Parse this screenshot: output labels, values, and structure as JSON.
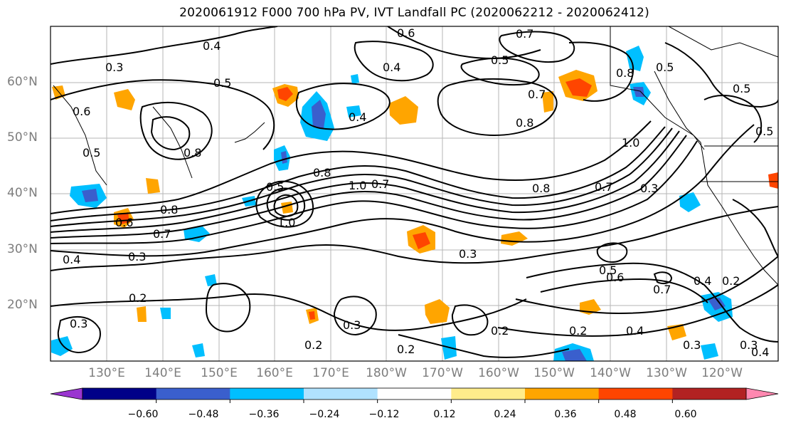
{
  "title": "2020061912 F000 700 hPa PV, IVT Landfall PC (2020062212 - 2020062412)",
  "lat_labels": [
    "60°N",
    "50°N",
    "40°N",
    "30°N",
    "20°N"
  ],
  "lon_labels": [
    "130°E",
    "140°E",
    "150°E",
    "160°E",
    "170°E",
    "180°W",
    "170°W",
    "160°W",
    "150°W",
    "140°W",
    "130°W",
    "120°W"
  ],
  "contour_labels": [
    "0.4",
    "0.5",
    "0.7",
    "0.3",
    "0.6",
    "0.5",
    "0.4",
    "0.5",
    "0.8",
    "0.5",
    "0.6",
    "0.5",
    "0.4",
    "0.7",
    "0.8",
    "1.0",
    "0.5",
    "0.8",
    "1.0",
    "0.7",
    "0.8",
    "0.7",
    "0.3",
    "1.0",
    "0.8",
    "0.5",
    "0.7",
    "0.4",
    "0.3",
    "0.2",
    "0.3",
    "0.5",
    "0.6",
    "0.4",
    "0.7",
    "0.2",
    "0.2",
    "0.3",
    "0.2",
    "0.2",
    "0.2",
    "0.4",
    "0.3",
    "0.3",
    "0.3",
    "0.4",
    "0.6",
    "0.8"
  ],
  "colorbar": {
    "ticks": [
      "−0.60",
      "−0.48",
      "−0.36",
      "−0.24",
      "−0.12",
      "0.12",
      "0.24",
      "0.36",
      "0.48",
      "0.60"
    ],
    "colors": [
      "#9a35d0",
      "#000088",
      "#3a5fcd",
      "#00bfff",
      "#b0e2ff",
      "#ffffff",
      "#ffec8b",
      "#ffa500",
      "#ff4500",
      "#b22222",
      "#ff88b0"
    ]
  }
}
